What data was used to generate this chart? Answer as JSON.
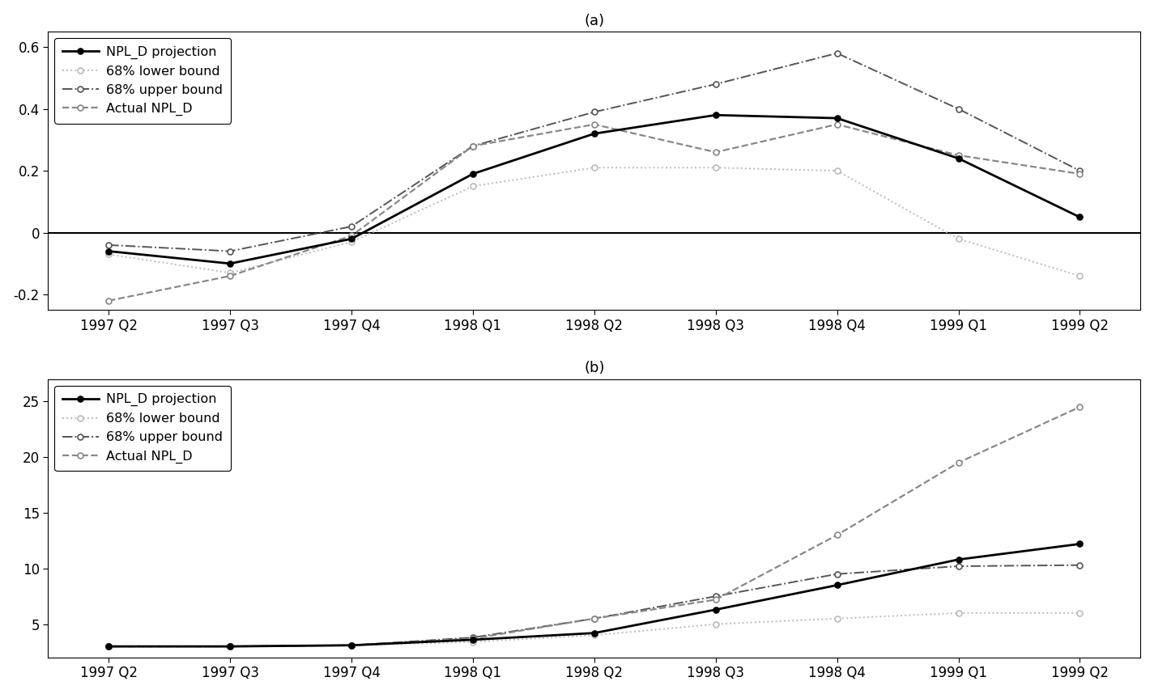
{
  "x_labels": [
    "1997 Q2",
    "1997 Q3",
    "1997 Q4",
    "1998 Q1",
    "1998 Q2",
    "1998 Q3",
    "1998 Q4",
    "1999 Q1",
    "1999 Q2"
  ],
  "panel_a": {
    "title": "(a)",
    "ylim": [
      -0.25,
      0.65
    ],
    "yticks": [
      -0.2,
      0.0,
      0.2,
      0.4,
      0.6
    ],
    "projection": [
      -0.06,
      -0.1,
      -0.02,
      0.19,
      0.32,
      0.38,
      0.37,
      0.24,
      0.05
    ],
    "lower_bound": [
      -0.07,
      -0.13,
      -0.03,
      0.15,
      0.21,
      0.21,
      0.2,
      -0.02,
      -0.14
    ],
    "upper_bound": [
      -0.04,
      -0.06,
      0.02,
      0.28,
      0.39,
      0.48,
      0.58,
      0.4,
      0.2
    ],
    "actual": [
      -0.22,
      -0.14,
      -0.01,
      0.28,
      0.35,
      0.26,
      0.35,
      0.25,
      0.19
    ]
  },
  "panel_b": {
    "title": "(b)",
    "ylim": [
      2.0,
      27.0
    ],
    "yticks": [
      5,
      10,
      15,
      20,
      25
    ],
    "projection": [
      3.0,
      3.0,
      3.1,
      3.6,
      4.2,
      6.3,
      8.5,
      10.8,
      12.2
    ],
    "lower_bound": [
      3.0,
      3.0,
      3.1,
      3.4,
      4.0,
      5.0,
      5.5,
      6.0,
      6.0
    ],
    "upper_bound": [
      3.0,
      3.0,
      3.1,
      3.8,
      5.5,
      7.5,
      9.5,
      10.2,
      10.3
    ],
    "actual": [
      3.0,
      3.0,
      3.1,
      3.7,
      5.5,
      7.2,
      13.0,
      19.5,
      24.5
    ]
  },
  "color_projection": "#000000",
  "color_lower": "#bbbbbb",
  "color_upper": "#555555",
  "color_actual": "#888888",
  "legend_labels": [
    "NPL_D projection",
    "68% lower bound",
    "68% upper bound",
    "Actual NPL_D"
  ]
}
